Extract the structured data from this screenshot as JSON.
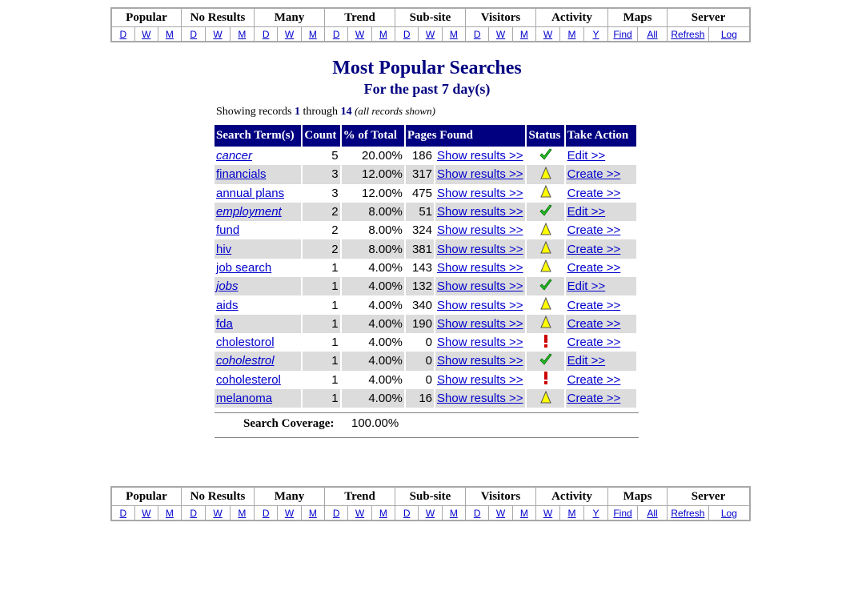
{
  "nav": {
    "groups": [
      {
        "label": "Popular",
        "links": [
          "D",
          "W",
          "M"
        ]
      },
      {
        "label": "No Results",
        "links": [
          "D",
          "W",
          "M"
        ]
      },
      {
        "label": "Many",
        "links": [
          "D",
          "W",
          "M"
        ]
      },
      {
        "label": "Trend",
        "links": [
          "D",
          "W",
          "M"
        ]
      },
      {
        "label": "Sub-site",
        "links": [
          "D",
          "W",
          "M"
        ]
      },
      {
        "label": "Visitors",
        "links": [
          "D",
          "W",
          "M"
        ]
      },
      {
        "label": "Activity",
        "links": [
          "W",
          "M",
          "Y"
        ]
      },
      {
        "label": "Maps",
        "links": [
          "Find",
          "All"
        ]
      },
      {
        "label": "Server",
        "links": [
          "Refresh",
          "Log"
        ]
      }
    ]
  },
  "page": {
    "title": "Most Popular Searches",
    "subtitle": "For the past 7 day(s)"
  },
  "records": {
    "prefix": "Showing records",
    "from": "1",
    "through_label": "through",
    "to": "14",
    "note": "(all records shown)"
  },
  "table": {
    "headers": [
      "Search Term(s)",
      "Count",
      "% of Total",
      "Pages Found",
      "Status",
      "Take Action"
    ],
    "rows": [
      {
        "term": "cancer",
        "term_italic": true,
        "count": "5",
        "percent": "20.00%",
        "pages": "186",
        "show": "Show results >>",
        "status": "check-icon",
        "action": "Edit >>"
      },
      {
        "term": "financials",
        "term_italic": false,
        "count": "3",
        "percent": "12.00%",
        "pages": "317",
        "show": "Show results >>",
        "status": "warning-icon",
        "action": "Create >>"
      },
      {
        "term": "annual plans",
        "term_italic": false,
        "count": "3",
        "percent": "12.00%",
        "pages": "475",
        "show": "Show results >>",
        "status": "warning-icon",
        "action": "Create >>"
      },
      {
        "term": "employment",
        "term_italic": true,
        "count": "2",
        "percent": "8.00%",
        "pages": "51",
        "show": "Show results >>",
        "status": "check-icon",
        "action": "Edit >>"
      },
      {
        "term": "fund",
        "term_italic": false,
        "count": "2",
        "percent": "8.00%",
        "pages": "324",
        "show": "Show results >>",
        "status": "warning-icon",
        "action": "Create >>"
      },
      {
        "term": "hiv",
        "term_italic": false,
        "count": "2",
        "percent": "8.00%",
        "pages": "381",
        "show": "Show results >>",
        "status": "warning-icon",
        "action": "Create >>"
      },
      {
        "term": "job search",
        "term_italic": false,
        "count": "1",
        "percent": "4.00%",
        "pages": "143",
        "show": "Show results >>",
        "status": "warning-icon",
        "action": "Create >>"
      },
      {
        "term": "jobs",
        "term_italic": true,
        "count": "1",
        "percent": "4.00%",
        "pages": "132",
        "show": "Show results >>",
        "status": "check-icon",
        "action": "Edit >>"
      },
      {
        "term": "aids",
        "term_italic": false,
        "count": "1",
        "percent": "4.00%",
        "pages": "340",
        "show": "Show results >>",
        "status": "warning-icon",
        "action": "Create >>"
      },
      {
        "term": "fda",
        "term_italic": false,
        "count": "1",
        "percent": "4.00%",
        "pages": "190",
        "show": "Show results >>",
        "status": "warning-icon",
        "action": "Create >>"
      },
      {
        "term": "cholestorol",
        "term_italic": false,
        "count": "1",
        "percent": "4.00%",
        "pages": "0",
        "show": "Show results >>",
        "status": "alert-icon",
        "action": "Create >>"
      },
      {
        "term": "coholestrol",
        "term_italic": true,
        "count": "1",
        "percent": "4.00%",
        "pages": "0",
        "show": "Show results >>",
        "status": "check-icon",
        "action": "Edit >>"
      },
      {
        "term": "coholesterol",
        "term_italic": false,
        "count": "1",
        "percent": "4.00%",
        "pages": "0",
        "show": "Show results >>",
        "status": "alert-icon",
        "action": "Create >>"
      },
      {
        "term": "melanoma",
        "term_italic": false,
        "count": "1",
        "percent": "4.00%",
        "pages": "16",
        "show": "Show results >>",
        "status": "warning-icon",
        "action": "Create >>"
      }
    ]
  },
  "coverage": {
    "label": "Search Coverage:",
    "value": "100.00%"
  },
  "colors": {
    "header_bg": "#000080",
    "link": "#0000cc",
    "alt_row": "#dcdcdc",
    "check": "#22c022",
    "warning": "#ffff00",
    "alert": "#cc0000"
  }
}
